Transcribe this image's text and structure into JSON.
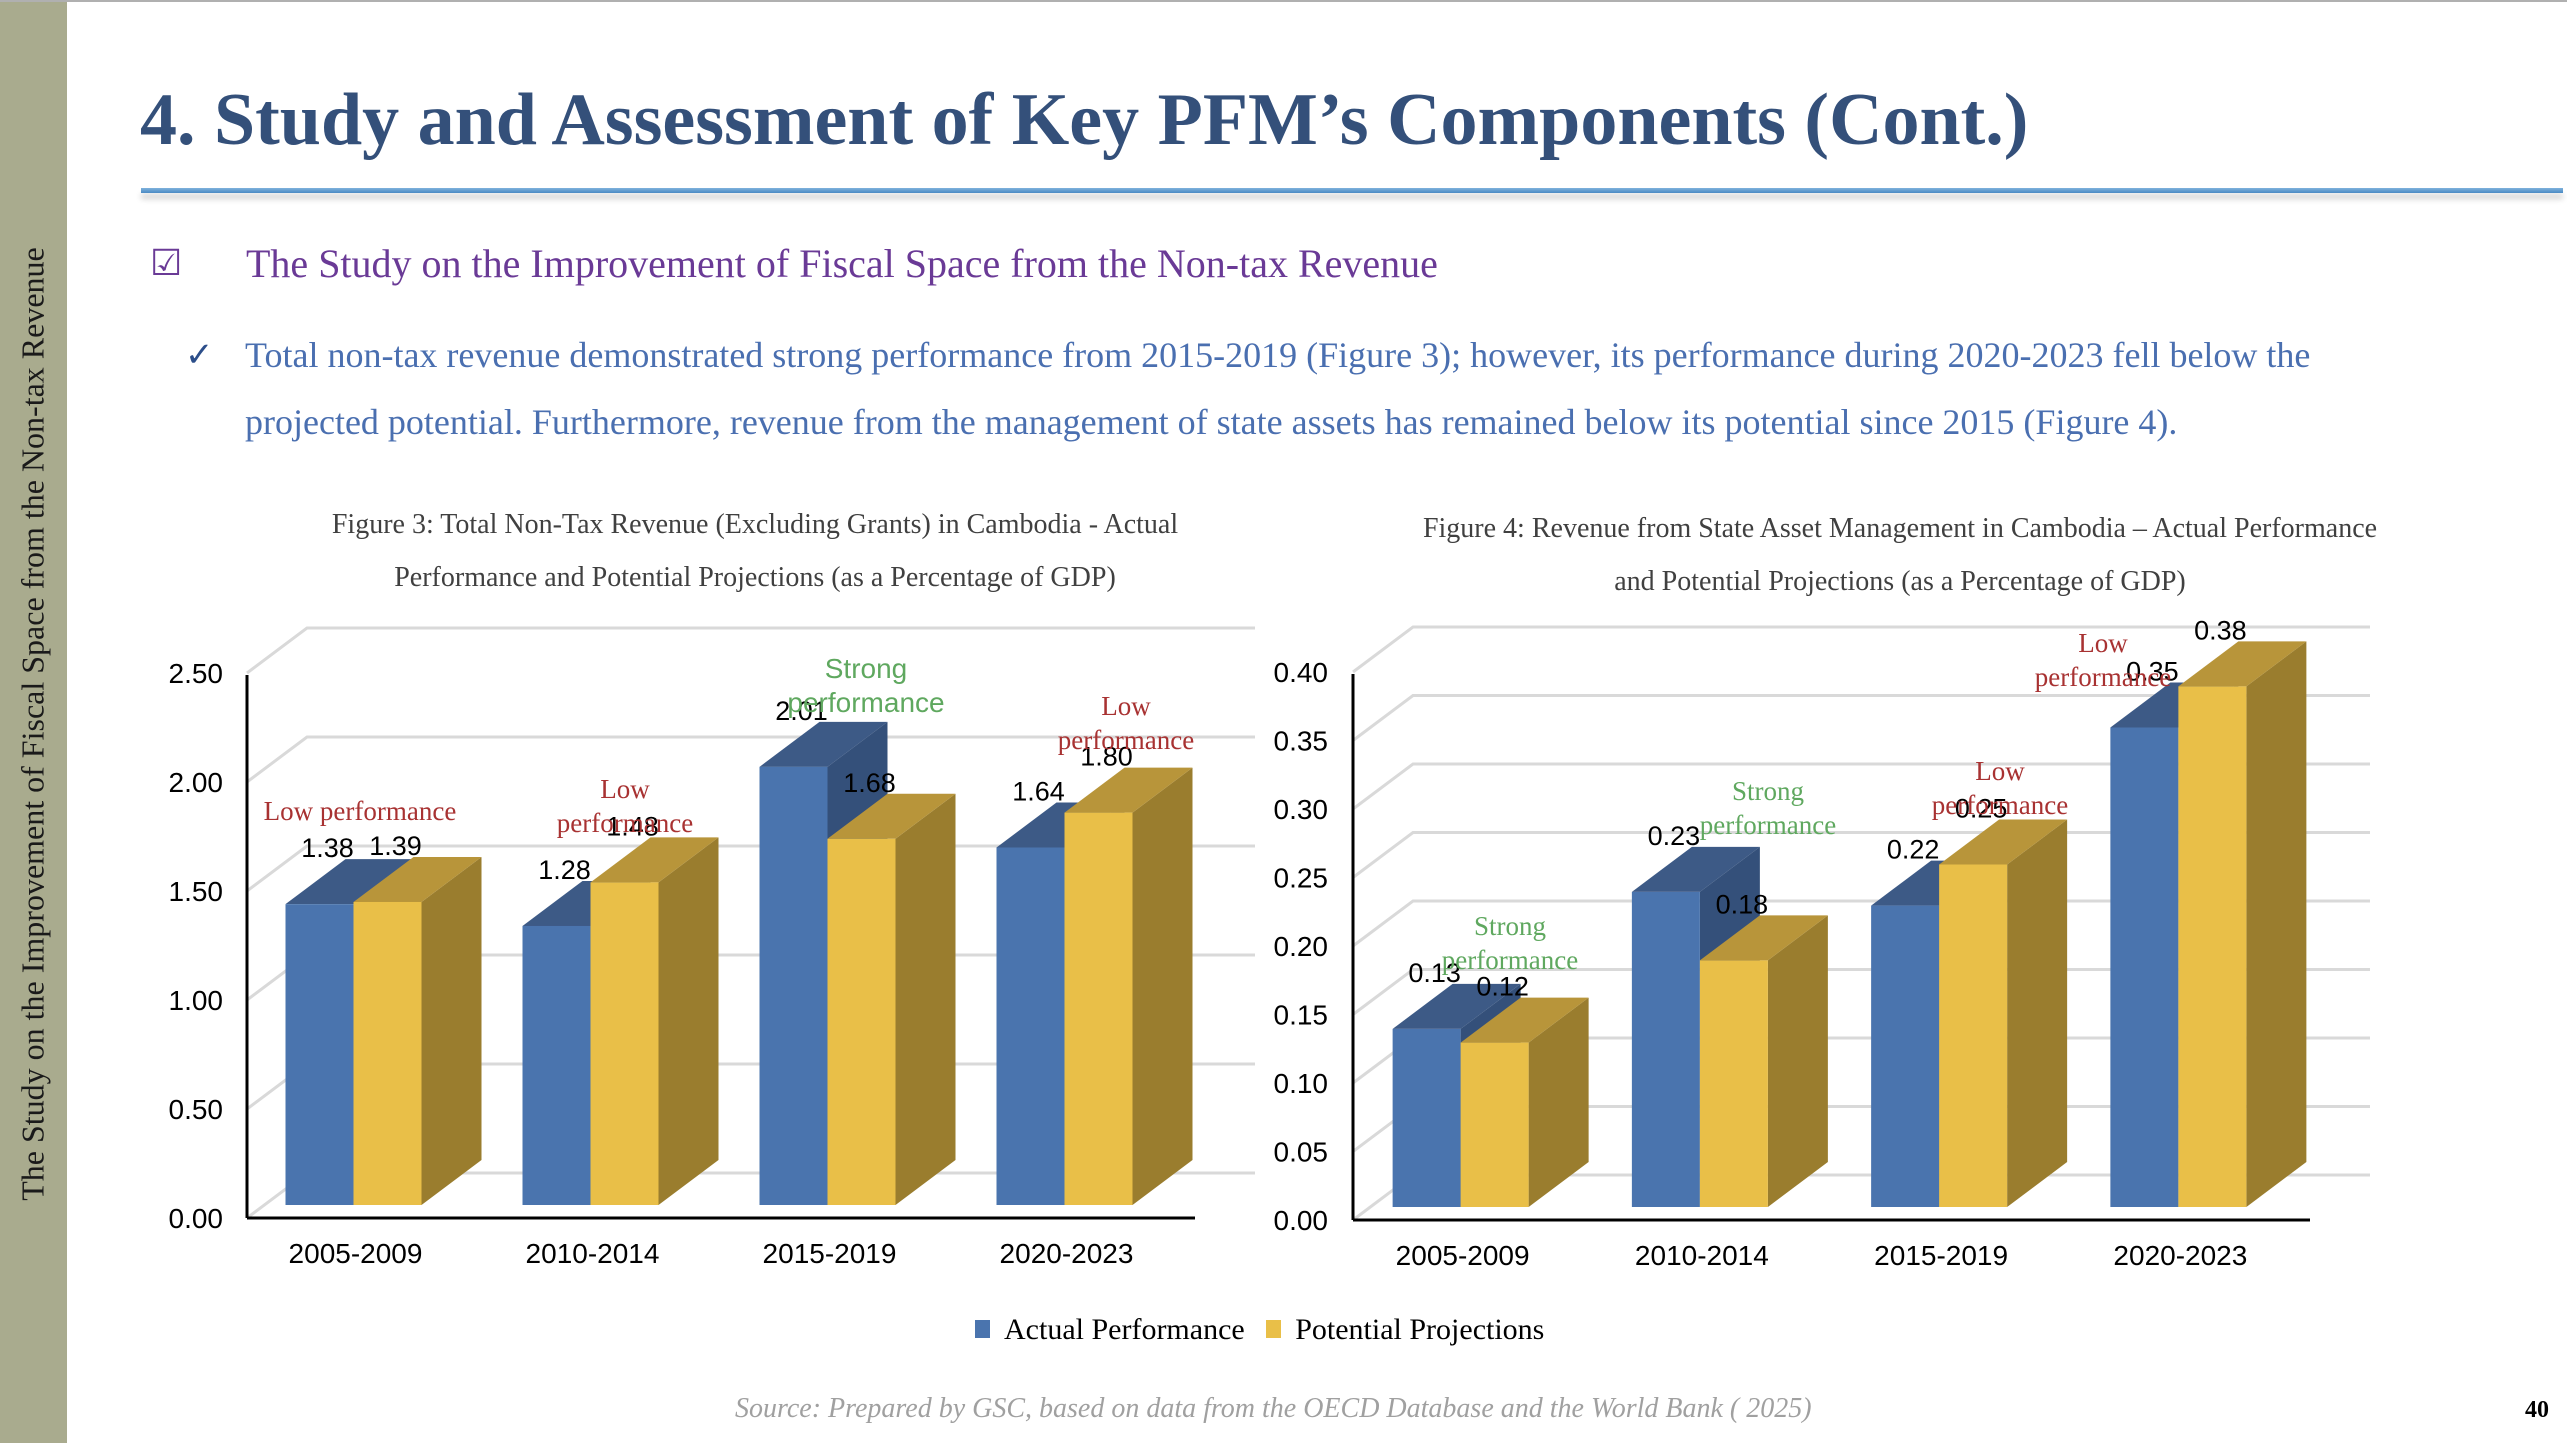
{
  "sidebar": {
    "text": "The Study on the Improvement of Fiscal Space from the Non-tax Revenue"
  },
  "slide": {
    "title": "4. Study and Assessment of Key PFM’s Components (Cont.)",
    "heading_icon": "☑",
    "heading": "The Study on the Improvement of Fiscal Space from the Non-tax Revenue",
    "bullet_icon": "✓",
    "bullet_text": "Total non-tax revenue demonstrated strong performance from 2015-2019 (Figure 3); however, its performance during 2020-2023 fell below the projected potential. Furthermore, revenue from the management of state assets has remained below its potential since 2015 (Figure 4).",
    "source": "Source: Prepared by GSC, based on data from the OECD Database and the World Bank ( 2025)",
    "page_number": "40"
  },
  "legend": {
    "items": [
      {
        "label": "Actual Performance",
        "color": "#4a74ae"
      },
      {
        "label": "Potential Projections",
        "color": "#e9bf48"
      }
    ]
  },
  "colors": {
    "actual": "#4a74ae",
    "actual_top": "#3d5a86",
    "actual_side": "#34507a",
    "potential": "#e9bf48",
    "potential_top": "#b8953a",
    "potential_side": "#9a7d2e",
    "low": "#a83232",
    "strong": "#5fa85f",
    "grid": "#d9d9d9"
  },
  "chart_data": [
    {
      "type": "bar",
      "title": "Figure 3: Total Non-Tax Revenue (Excluding Grants) in Cambodia - Actual Performance and Potential Projections (as a Percentage of GDP)",
      "title_lines": [
        "Figure 3: Total Non-Tax Revenue (Excluding Grants) in Cambodia - Actual",
        "Performance and Potential Projections (as a Percentage of GDP)"
      ],
      "xlabel": "",
      "ylabel": "",
      "ylim": [
        0,
        2.5
      ],
      "yticks": [
        "0.00",
        "0.50",
        "1.00",
        "1.50",
        "2.00",
        "2.50"
      ],
      "grid": true,
      "legend": "bottom",
      "categories": [
        "2005-2009",
        "2010-2014",
        "2015-2019",
        "2020-2023"
      ],
      "series": [
        {
          "name": "Actual Performance",
          "values": [
            1.38,
            1.28,
            2.01,
            1.64
          ],
          "labels": [
            "1.38",
            "1.28",
            "2.01",
            "1.64"
          ]
        },
        {
          "name": "Potential Projections",
          "values": [
            1.39,
            1.48,
            1.68,
            1.8
          ],
          "labels": [
            "1.39",
            "1.48",
            "1.68",
            "1.80"
          ]
        }
      ],
      "annotations": [
        {
          "category": "2005-2009",
          "lines": [
            "Low performance"
          ],
          "kind": "low"
        },
        {
          "category": "2010-2014",
          "lines": [
            "Low",
            "performance"
          ],
          "kind": "low"
        },
        {
          "category": "2015-2019",
          "lines": [
            "Strong",
            "performance"
          ],
          "kind": "strong"
        },
        {
          "category": "2020-2023",
          "lines": [
            "Low",
            "performance"
          ],
          "kind": "low"
        }
      ]
    },
    {
      "type": "bar",
      "title": "Figure 4: Revenue from State Asset Management in Cambodia – Actual Performance and Potential Projections (as a Percentage of GDP)",
      "title_lines": [
        "Figure 4: Revenue from State Asset Management in Cambodia – Actual Performance",
        "and Potential Projections (as a Percentage of GDP)"
      ],
      "xlabel": "",
      "ylabel": "",
      "ylim": [
        0,
        0.4
      ],
      "yticks": [
        "0.00",
        "0.05",
        "0.10",
        "0.15",
        "0.20",
        "0.25",
        "0.30",
        "0.35",
        "0.40"
      ],
      "grid": true,
      "legend": "bottom",
      "categories": [
        "2005-2009",
        "2010-2014",
        "2015-2019",
        "2020-2023"
      ],
      "series": [
        {
          "name": "Actual Performance",
          "values": [
            0.13,
            0.23,
            0.22,
            0.35
          ],
          "labels": [
            "0.13",
            "0.23",
            "0.22",
            "0.35"
          ]
        },
        {
          "name": "Potential Projections",
          "values": [
            0.12,
            0.18,
            0.25,
            0.38
          ],
          "labels": [
            "0.12",
            "0.18",
            "0.25",
            "0.38"
          ]
        }
      ],
      "annotations": [
        {
          "category": "2005-2009",
          "lines": [
            "Strong",
            "performance"
          ],
          "kind": "strong"
        },
        {
          "category": "2010-2014",
          "lines": [
            "Strong",
            "performance"
          ],
          "kind": "strong"
        },
        {
          "category": "2015-2019",
          "lines": [
            "Low",
            "performance"
          ],
          "kind": "low"
        },
        {
          "category": "2020-2023",
          "lines": [
            "Low",
            "performance"
          ],
          "kind": "low"
        }
      ]
    }
  ]
}
